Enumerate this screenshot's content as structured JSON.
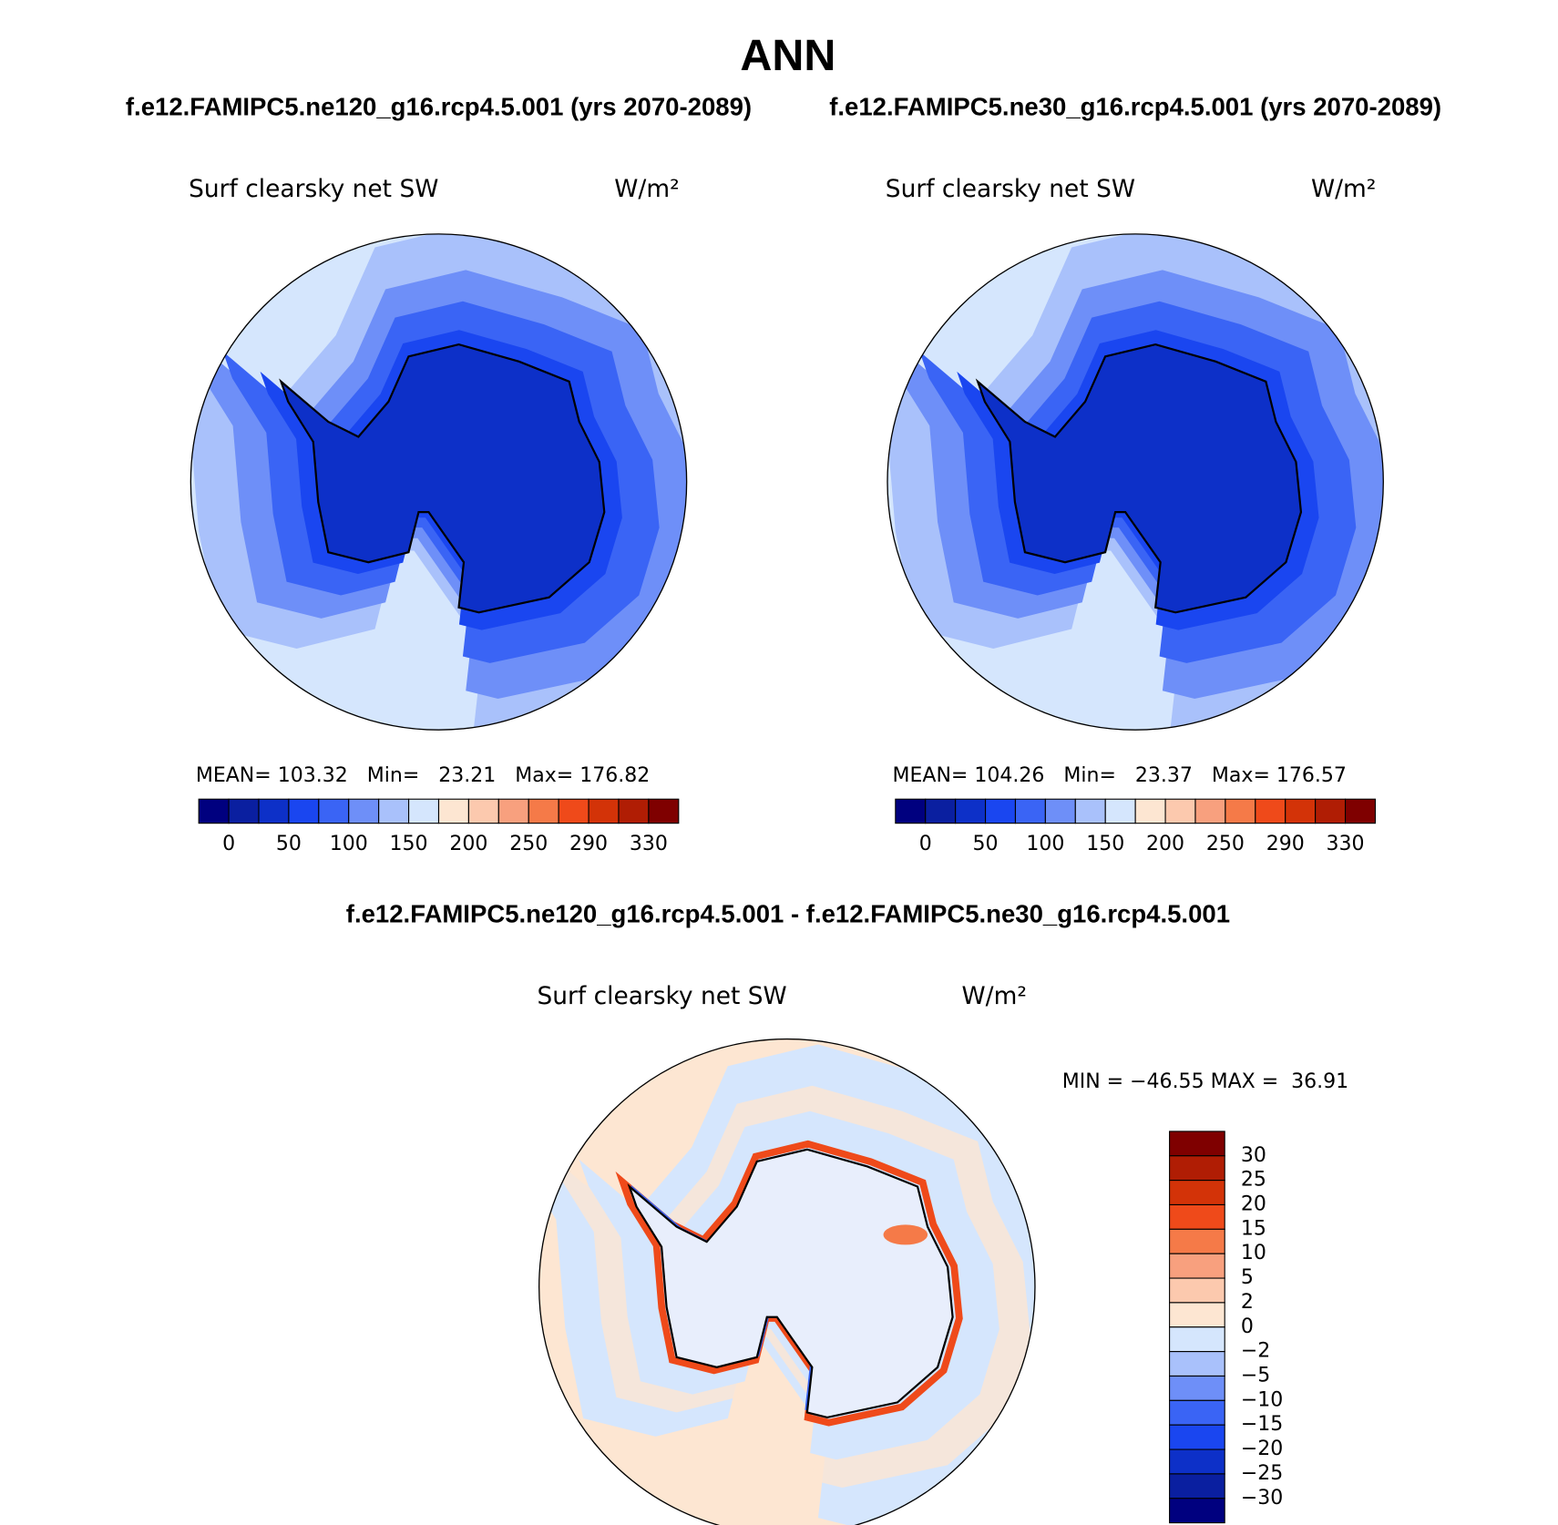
{
  "title": "ANN",
  "panels": [
    {
      "case": "f.e12.FAMIPC5.ne120_g16.rcp4.5.001 (yrs 2070-2089)",
      "variable": "Surf clearsky net SW",
      "units": "W/m²",
      "stats": "MEAN= 103.32   Min=   23.21   Max= 176.82",
      "colorbar": {
        "labels": [
          "0",
          "50",
          "100",
          "150",
          "200",
          "250",
          "290",
          "330"
        ]
      }
    },
    {
      "case": "f.e12.FAMIPC5.ne30_g16.rcp4.5.001 (yrs 2070-2089)",
      "variable": "Surf clearsky net SW",
      "units": "W/m²",
      "stats": "MEAN= 104.26   Min=   23.37   Max= 176.57",
      "colorbar": {
        "labels": [
          "0",
          "50",
          "100",
          "150",
          "200",
          "250",
          "290",
          "330"
        ]
      }
    }
  ],
  "difference": {
    "case": "f.e12.FAMIPC5.ne120_g16.rcp4.5.001 - f.e12.FAMIPC5.ne30_g16.rcp4.5.001",
    "variable": "Surf clearsky net SW",
    "units": "W/m²",
    "stats": "MIN = −46.55 MAX =  36.91",
    "colorbar": {
      "labels": [
        "30",
        "25",
        "20",
        "15",
        "10",
        "5",
        "2",
        "0",
        "−2",
        "−5",
        "−10",
        "−15",
        "−20",
        "−25",
        "−30"
      ]
    }
  }
}
